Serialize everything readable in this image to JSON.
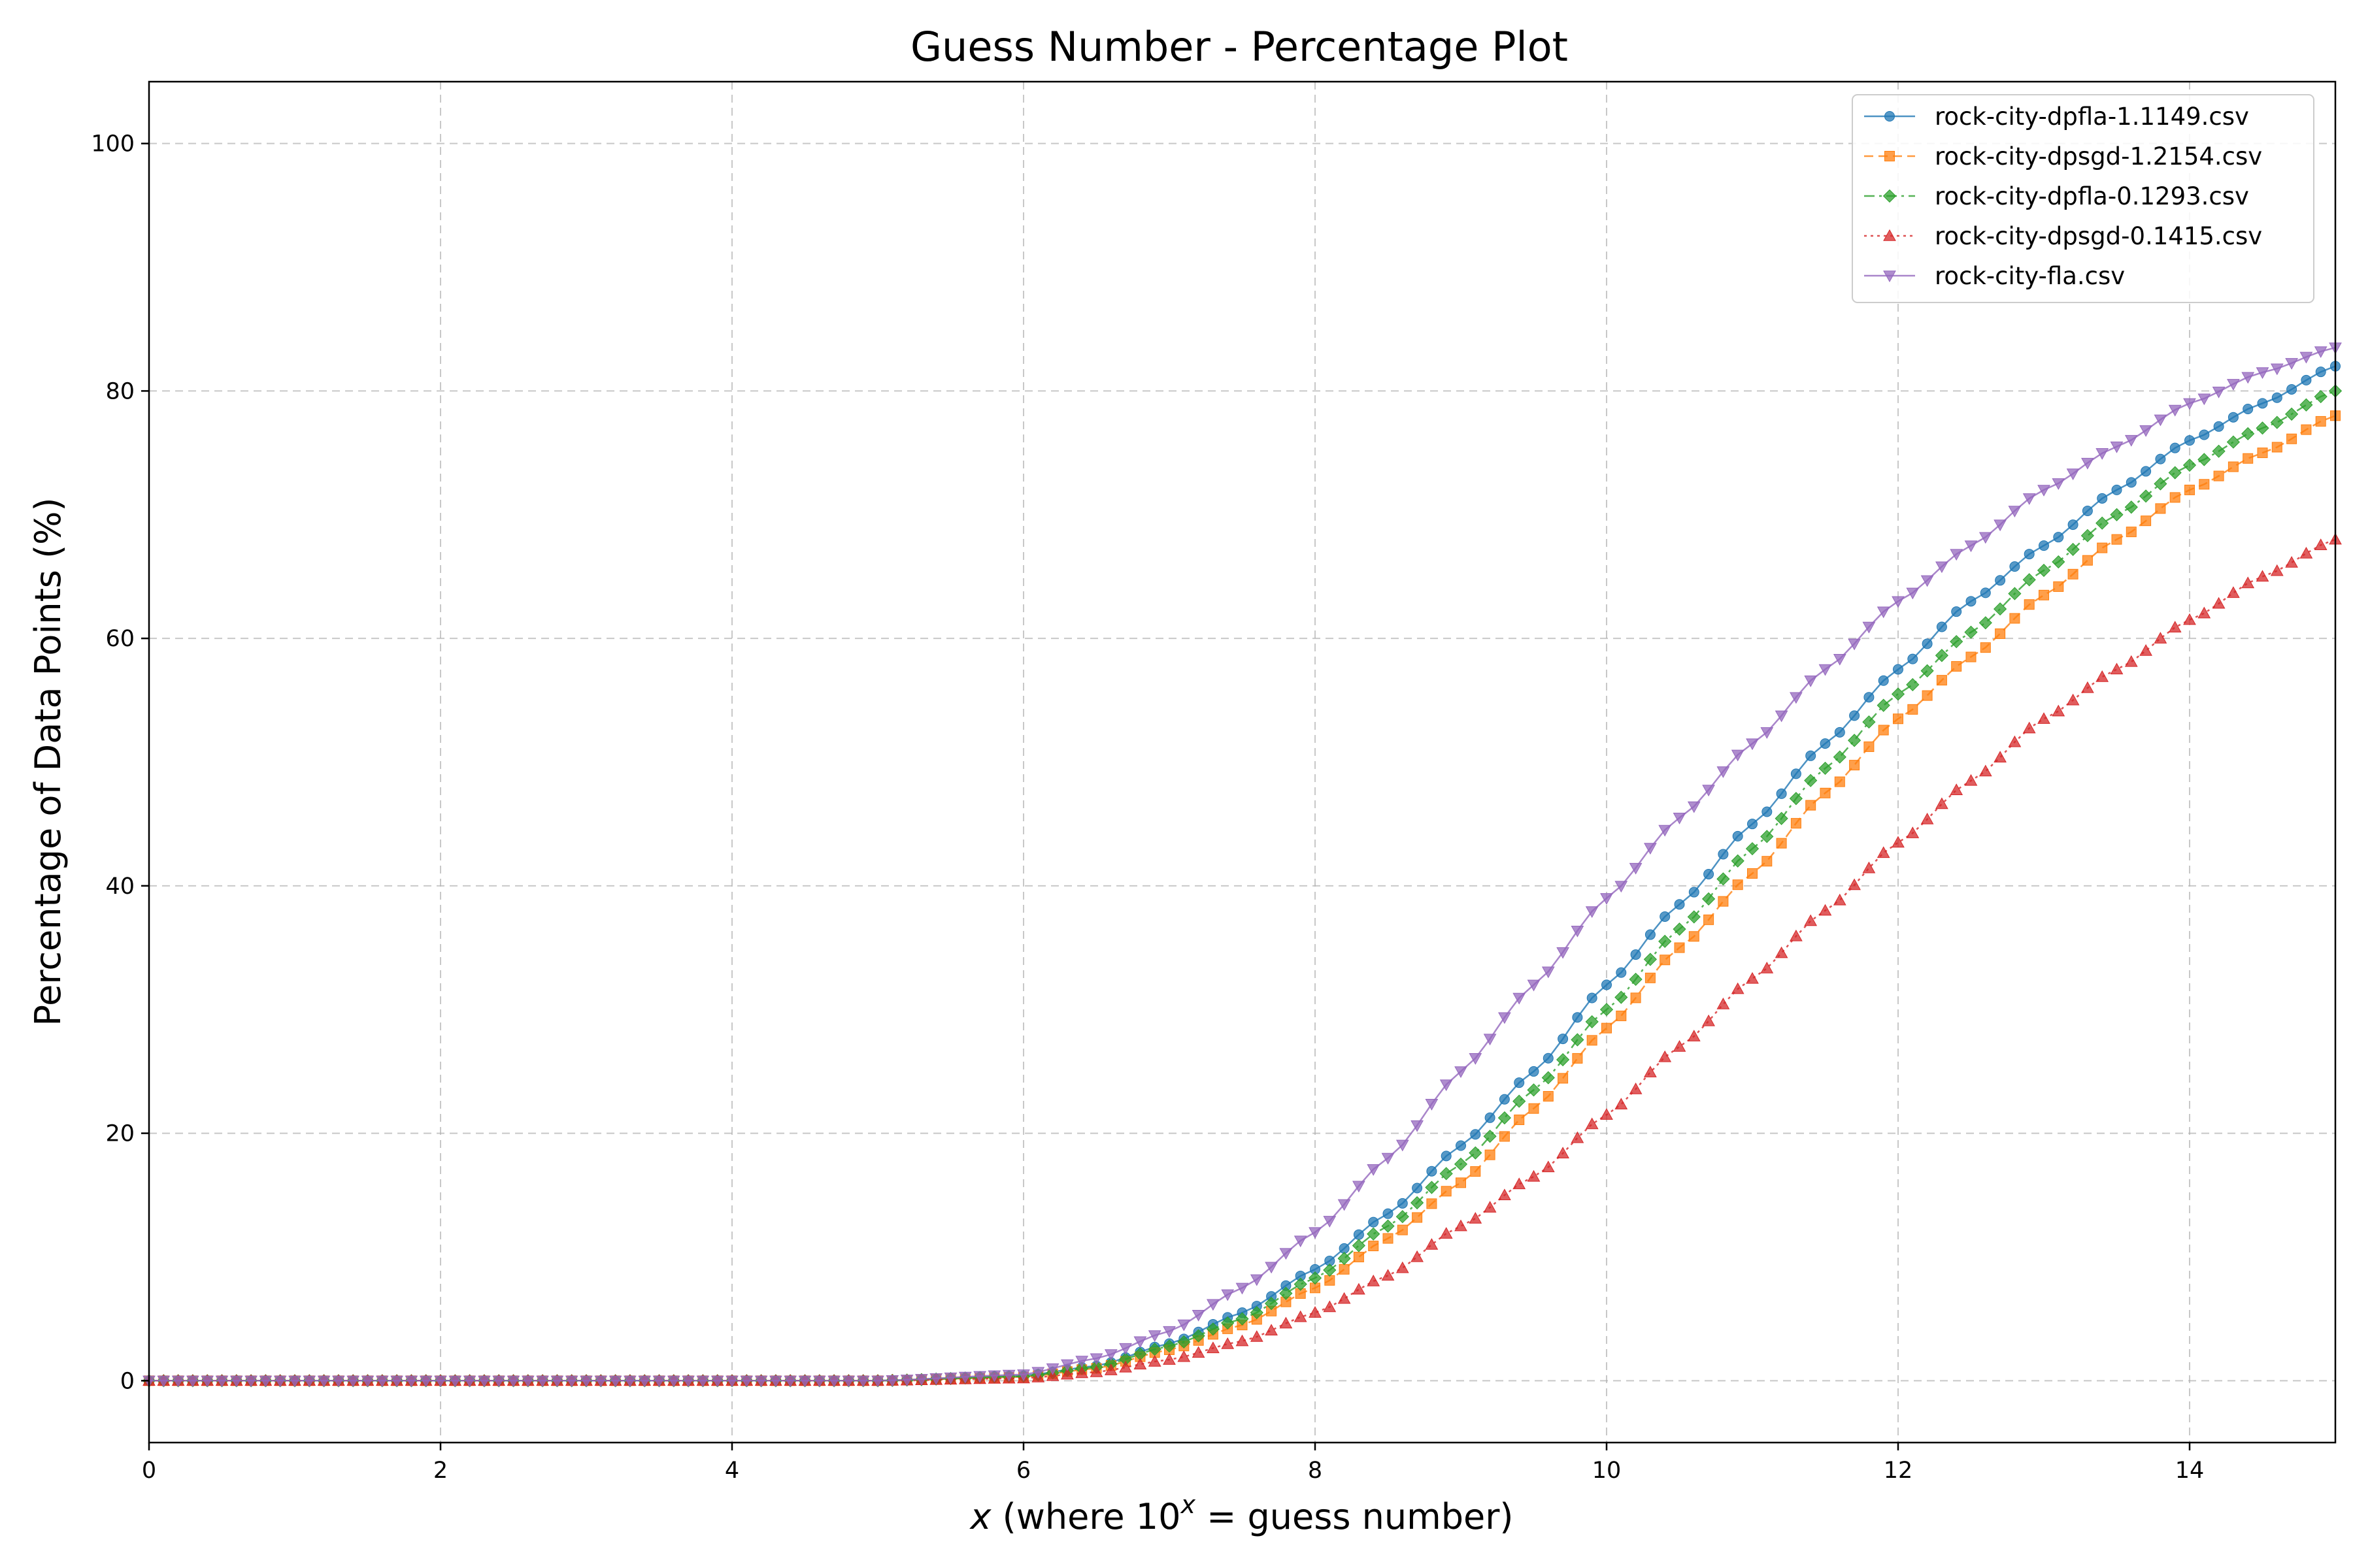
{
  "chart_data": {
    "type": "line",
    "title": "Guess Number - Percentage Plot",
    "xlabel_prefix": "x",
    "xlabel_where": " (where 10",
    "xlabel_sup": "x",
    "xlabel_suffix": " = guess number)",
    "ylabel": "Percentage of Data Points (%)",
    "xlim": [
      0,
      15
    ],
    "ylim": [
      -5,
      105
    ],
    "x_ticks": [
      "0",
      "2",
      "4",
      "6",
      "8",
      "10",
      "12",
      "14"
    ],
    "y_ticks": [
      "0",
      "20",
      "40",
      "60",
      "80",
      "100"
    ],
    "grid": true,
    "legend_position": "top-right",
    "sampling": {
      "start": 0,
      "end": 15,
      "step": 0.1
    },
    "series": [
      {
        "name": "rock-city-dpfla-1.1149.csv",
        "color": "#1f77b4",
        "marker": "circle",
        "dash": "solid",
        "points": [
          [
            0,
            0
          ],
          [
            5,
            0
          ],
          [
            6,
            0.4
          ],
          [
            6.5,
            1.2
          ],
          [
            7,
            3
          ],
          [
            7.5,
            5.5
          ],
          [
            8,
            9
          ],
          [
            8.5,
            13.5
          ],
          [
            9,
            19
          ],
          [
            9.5,
            25
          ],
          [
            10,
            32
          ],
          [
            10.5,
            38.5
          ],
          [
            11,
            45
          ],
          [
            11.5,
            51.5
          ],
          [
            12,
            57.5
          ],
          [
            12.5,
            63
          ],
          [
            13,
            67.5
          ],
          [
            13.5,
            72
          ],
          [
            14,
            76
          ],
          [
            14.5,
            79
          ],
          [
            15,
            82
          ]
        ]
      },
      {
        "name": "rock-city-dpsgd-1.2154.csv",
        "color": "#ff7f0e",
        "marker": "square",
        "dash": "dashed",
        "points": [
          [
            0,
            0
          ],
          [
            5,
            0
          ],
          [
            6,
            0.3
          ],
          [
            6.5,
            1
          ],
          [
            7,
            2.5
          ],
          [
            7.5,
            4.5
          ],
          [
            8,
            7.5
          ],
          [
            8.5,
            11.5
          ],
          [
            9,
            16
          ],
          [
            9.5,
            22
          ],
          [
            10,
            28.5
          ],
          [
            10.5,
            35
          ],
          [
            11,
            41
          ],
          [
            11.5,
            47.5
          ],
          [
            12,
            53.5
          ],
          [
            12.5,
            58.5
          ],
          [
            13,
            63.5
          ],
          [
            13.5,
            68
          ],
          [
            14,
            72
          ],
          [
            14.5,
            75
          ],
          [
            15,
            78
          ]
        ]
      },
      {
        "name": "rock-city-dpfla-0.1293.csv",
        "color": "#2ca02c",
        "marker": "diamond",
        "dash": "dashdot",
        "points": [
          [
            0,
            0
          ],
          [
            5,
            0
          ],
          [
            6,
            0.35
          ],
          [
            6.5,
            1.1
          ],
          [
            7,
            2.8
          ],
          [
            7.5,
            5
          ],
          [
            8,
            8.3
          ],
          [
            8.5,
            12.5
          ],
          [
            9,
            17.5
          ],
          [
            9.5,
            23.5
          ],
          [
            10,
            30
          ],
          [
            10.5,
            36.5
          ],
          [
            11,
            43
          ],
          [
            11.5,
            49.5
          ],
          [
            12,
            55.5
          ],
          [
            12.5,
            60.5
          ],
          [
            13,
            65.5
          ],
          [
            13.5,
            70
          ],
          [
            14,
            74
          ],
          [
            14.5,
            77
          ],
          [
            15,
            80
          ]
        ]
      },
      {
        "name": "rock-city-dpsgd-0.1415.csv",
        "color": "#d62728",
        "marker": "triangle-up",
        "dash": "dotted",
        "points": [
          [
            0,
            0
          ],
          [
            5,
            0
          ],
          [
            6,
            0.2
          ],
          [
            6.5,
            0.7
          ],
          [
            7,
            1.7
          ],
          [
            7.5,
            3.2
          ],
          [
            8,
            5.5
          ],
          [
            8.5,
            8.5
          ],
          [
            9,
            12.5
          ],
          [
            9.5,
            16.5
          ],
          [
            10,
            21.5
          ],
          [
            10.5,
            27
          ],
          [
            11,
            32.5
          ],
          [
            11.5,
            38
          ],
          [
            12,
            43.5
          ],
          [
            12.5,
            48.5
          ],
          [
            13,
            53.5
          ],
          [
            13.5,
            57.5
          ],
          [
            14,
            61.5
          ],
          [
            14.5,
            65
          ],
          [
            15,
            68
          ]
        ]
      },
      {
        "name": "rock-city-fla.csv",
        "color": "#9467bd",
        "marker": "triangle-down",
        "dash": "solid",
        "points": [
          [
            0,
            0
          ],
          [
            5,
            0
          ],
          [
            6,
            0.5
          ],
          [
            6.5,
            1.8
          ],
          [
            7,
            4
          ],
          [
            7.5,
            7.5
          ],
          [
            8,
            12
          ],
          [
            8.5,
            18
          ],
          [
            9,
            25
          ],
          [
            9.5,
            32
          ],
          [
            10,
            39
          ],
          [
            10.5,
            45.5
          ],
          [
            11,
            51.5
          ],
          [
            11.5,
            57.5
          ],
          [
            12,
            63
          ],
          [
            12.5,
            67.5
          ],
          [
            13,
            72
          ],
          [
            13.5,
            75.5
          ],
          [
            14,
            79
          ],
          [
            14.5,
            81.5
          ],
          [
            15,
            83.5
          ]
        ]
      }
    ]
  }
}
